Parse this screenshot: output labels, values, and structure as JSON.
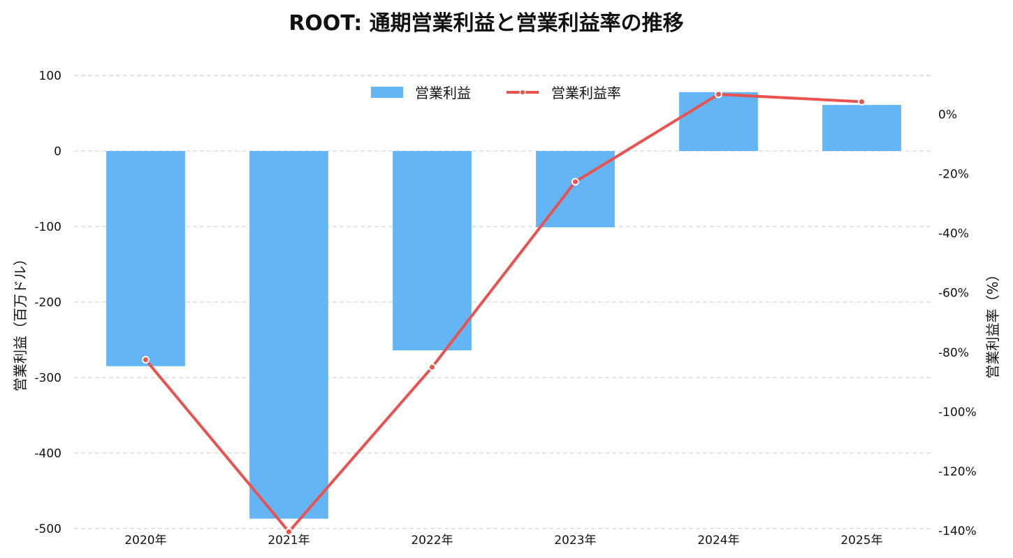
{
  "chart_data": {
    "type": "bar",
    "title": "ROOT: 通期営業利益と営業利益率の推移",
    "categories": [
      "2020年",
      "2021年",
      "2022年",
      "2023年",
      "2024年",
      "2025年"
    ],
    "series": [
      {
        "name": "営業利益",
        "kind": "bar",
        "axis": "left",
        "values": [
          -285,
          -487,
          -264,
          -101,
          78,
          61
        ],
        "color": "#64b5f6"
      },
      {
        "name": "営業利益率",
        "kind": "line",
        "axis": "right",
        "values": [
          -82.5,
          -140.3,
          -85.0,
          -22.7,
          6.7,
          4.2
        ],
        "color": "#e9524f"
      }
    ],
    "left_axis": {
      "label": "営業利益（百万ドル）",
      "ylim": [
        -515,
        100
      ],
      "ticks": [
        100,
        0,
        -100,
        -200,
        -300,
        -400,
        -500
      ]
    },
    "right_axis": {
      "label": "営業利益率（%）",
      "ylim": [
        -143,
        13
      ],
      "ticks": [
        0,
        -20,
        -40,
        -60,
        -80,
        -100,
        -120,
        -140
      ],
      "tick_labels": [
        "0%",
        "-20%",
        "-40%",
        "-60%",
        "-80%",
        "-100%",
        "-120%",
        "-140%"
      ]
    },
    "grid": true,
    "legend": "top-center"
  }
}
